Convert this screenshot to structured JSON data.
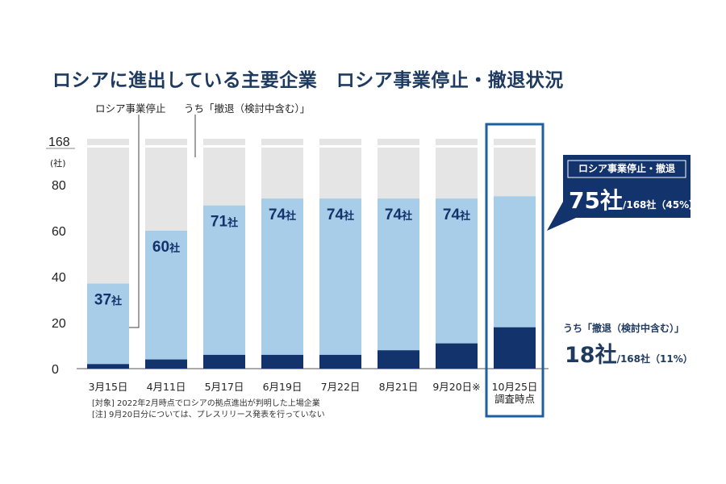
{
  "chart_data": {
    "type": "bar",
    "title": "ロシアに進出している主要企業　ロシア事業停止・撤退状況",
    "total": 168,
    "total_label": "168",
    "unit_label": "(社)",
    "y_ticks": [
      0,
      20,
      40,
      60,
      80
    ],
    "categories": [
      "3月15日",
      "4月11日",
      "5月17日",
      "6月19日",
      "7月22日",
      "8月21日",
      "9月20日※",
      "10月25日"
    ],
    "last_category_sub": "調査時点",
    "series": [
      {
        "name": "ロシア事業停止",
        "values": [
          37,
          60,
          71,
          74,
          74,
          74,
          74,
          75
        ]
      },
      {
        "name": "うち「撤退（検討中含む）」",
        "values": [
          2,
          4,
          6,
          6,
          6,
          8,
          11,
          18
        ]
      }
    ],
    "bar_value_labels": [
      "37社",
      "60社",
      "71社",
      "74社",
      "74社",
      "74社",
      "74社"
    ],
    "colors": {
      "remainder": "#e5e5e5",
      "stopped": "#a8cde9",
      "withdrawn": "#12336b",
      "highlight_border": "#1d5fa0",
      "callout_bg": "#12336b"
    }
  },
  "legend": {
    "stopped": "ロシア事業停止",
    "withdrawn": "うち「撤退（検討中含む）」"
  },
  "callout": {
    "header": "ロシア事業停止・撤退",
    "value": "75社",
    "detail": "/168社（45%）"
  },
  "withdraw_callout": {
    "label": "うち「撤退（検討中含む）」",
    "value": "18社",
    "detail": "/168社（11%）"
  },
  "notes": [
    "[対象] 2022年2月時点でロシアの拠点進出が判明した上場企業",
    "[注] 9月20日分については、プレスリリース発表を行っていない"
  ]
}
